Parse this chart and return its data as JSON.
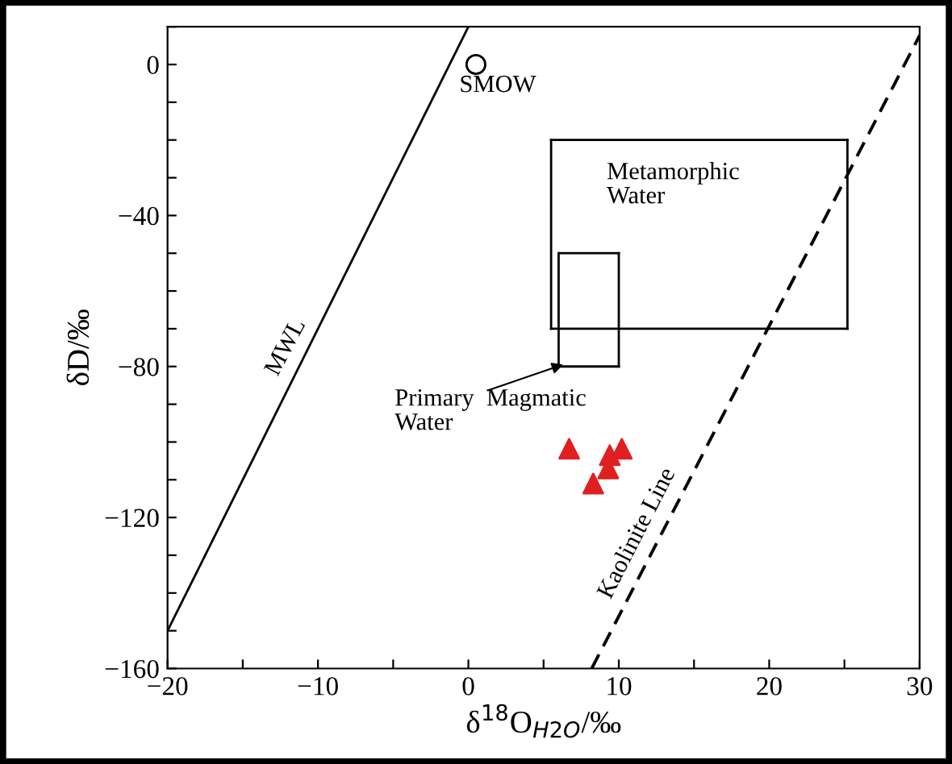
{
  "chart_data": {
    "type": "line",
    "xlabel": "δ$^{18}$O$_{H2O}$/‰",
    "ylabel": "δD/‰",
    "xlim": [
      -20,
      30
    ],
    "ylim": [
      -160,
      10
    ],
    "xticks": [
      -20,
      {
        "value": -15,
        "label": null
      },
      -10,
      {
        "value": -5,
        "label": null
      },
      0,
      {
        "value": 5,
        "label": null
      },
      10,
      {
        "value": 15,
        "label": null
      },
      20,
      {
        "value": 25,
        "label": null
      },
      30
    ],
    "yticks": [
      -160,
      {
        "value": -150,
        "label": null
      },
      {
        "value": -140,
        "label": null
      },
      {
        "value": -130,
        "label": null
      },
      -120,
      {
        "value": -110,
        "label": null
      },
      {
        "value": -100,
        "label": null
      },
      {
        "value": -90,
        "label": null
      },
      -80,
      {
        "value": -70,
        "label": null
      },
      {
        "value": -60,
        "label": null
      },
      {
        "value": -50,
        "label": null
      },
      -40,
      {
        "value": -30,
        "label": null
      },
      {
        "value": -20,
        "label": null
      },
      {
        "value": -10,
        "label": null
      },
      0,
      {
        "value": 10,
        "label": null
      }
    ],
    "grid": false,
    "legend": false,
    "series": [
      {
        "color": "#000000",
        "line_style": "solid",
        "x": [
          -20,
          0
        ],
        "values": [
          -150,
          10
        ]
      },
      {
        "color": "#000000",
        "line_style": "dashed",
        "x": [
          8.2,
          30
        ],
        "values": [
          -160,
          7.7
        ]
      },
      {
        "color": "#000000",
        "line_style": "solid",
        "x": [
          5.5,
          25.2
        ],
        "values": [
          -20,
          -20
        ]
      },
      {
        "color": "#000000",
        "line_style": "solid",
        "x": [
          5.5,
          25.2
        ],
        "values": [
          -70,
          -70
        ]
      },
      {
        "color": "#000000",
        "line_style": "solid",
        "x": [
          5.5,
          5.5
        ],
        "values": [
          -20,
          -70
        ]
      },
      {
        "color": "#000000",
        "line_style": "solid",
        "x": [
          25.2,
          25.2
        ],
        "values": [
          -20,
          -70
        ]
      },
      {
        "color": "#000000",
        "line_style": "solid",
        "x": [
          6,
          10
        ],
        "values": [
          -50,
          -50
        ]
      },
      {
        "color": "#000000",
        "line_style": "solid",
        "x": [
          6,
          10
        ],
        "values": [
          -80,
          -80
        ]
      },
      {
        "color": "#000000",
        "line_style": "solid",
        "x": [
          6,
          6
        ],
        "values": [
          -50,
          -80
        ]
      },
      {
        "color": "#000000",
        "line_style": "solid",
        "x": [
          10,
          10
        ],
        "values": [
          -50,
          -80
        ]
      },
      {
        "type": "scatter",
        "color": "#000000",
        "marker": "circle",
        "x": [
          0.5
        ],
        "values": [
          0
        ]
      },
      {
        "type": "scatter",
        "color": "#e02020",
        "marker": "triangle",
        "x": [
          6.7,
          9.4,
          10.2,
          9.3,
          8.3
        ],
        "values": [
          -101.8,
          -103.5,
          -101.8,
          -107,
          -111
        ]
      }
    ],
    "annotations": [
      "SMOW",
      "MWL",
      "Kaolinite Line",
      "Metamorphic\nWater",
      "Primary  Magmatic\nWater"
    ]
  }
}
